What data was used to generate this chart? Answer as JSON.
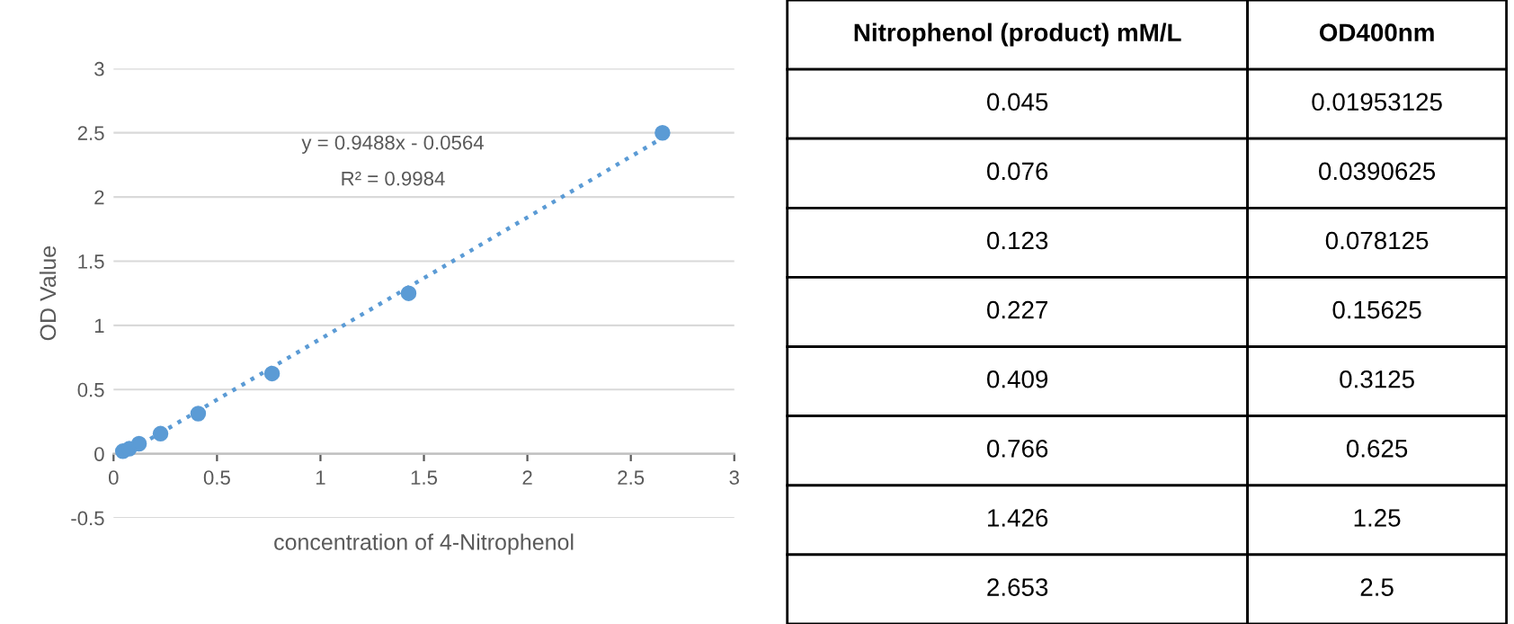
{
  "chart_data": [
    {
      "type": "scatter",
      "xlabel": "concentration of 4-Nitrophenol",
      "ylabel": "OD Value",
      "x": [
        0.045,
        0.076,
        0.123,
        0.227,
        0.409,
        0.766,
        1.426,
        2.653
      ],
      "series": [
        {
          "color": "#5b9bd5",
          "marker": "circle",
          "values": [
            0.01953125,
            0.0390625,
            0.078125,
            0.15625,
            0.3125,
            0.625,
            1.25,
            2.5
          ]
        },
        {
          "type": "line",
          "color": "#5b9bd5",
          "line_style": "dotted",
          "marker": "none",
          "x": [
            0.045,
            2.653
          ],
          "values": [
            -0.01,
            2.46
          ]
        }
      ],
      "xlim": [
        0,
        3
      ],
      "xticks": [
        0,
        0.5,
        1,
        1.5,
        2,
        2.5,
        3
      ],
      "ylim": [
        -0.5,
        3
      ],
      "yticks": [
        -0.5,
        0,
        0.5,
        1,
        1.5,
        2,
        2.5,
        3
      ],
      "grid": "y",
      "annotations": [
        "y = 0.9488x - 0.0564",
        "R² = 0.9984"
      ]
    },
    {
      "type": "other",
      "annotations": [
        "Nitrophenol (product) mM/L",
        "OD400nm",
        "0.045",
        "0.01953125",
        "0.076",
        "0.0390625",
        "0.123",
        "0.078125",
        "0.227",
        "0.15625",
        "0.409",
        "0.3125",
        "0.766",
        "0.625",
        "1.426",
        "1.25",
        "2.653",
        "2.5"
      ]
    }
  ]
}
